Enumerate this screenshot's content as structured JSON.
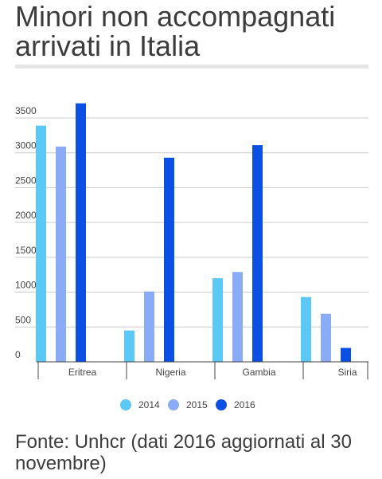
{
  "title": "Minori non accompagnati arrivati in Italia",
  "source": "Fonte: Unhcr (dati 2016 aggiornati al 30 novembre)",
  "chart_data": {
    "type": "bar",
    "categories": [
      "Eritrea",
      "Nigeria",
      "Gambia",
      "Siria"
    ],
    "series": [
      {
        "name": "2014",
        "color": "#5bc8f5",
        "values": [
          3390,
          450,
          1200,
          930
        ]
      },
      {
        "name": "2015",
        "color": "#8aabf5",
        "values": [
          3090,
          1010,
          1290,
          690
        ]
      },
      {
        "name": "2016",
        "color": "#0b4fe3",
        "values": [
          3710,
          2930,
          3110,
          200
        ]
      }
    ],
    "y_ticks": [
      0,
      500,
      1000,
      1500,
      2000,
      2500,
      3000,
      3500
    ],
    "ylim": [
      0,
      3500
    ],
    "grid": true,
    "legend_position": "bottom"
  }
}
